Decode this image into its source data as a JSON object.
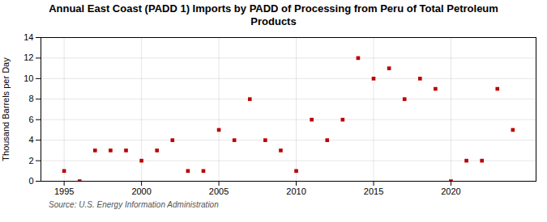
{
  "chart_data": {
    "type": "scatter",
    "title": "Annual East Coast (PADD 1) Imports by PADD of Processing from Peru of Total Petroleum\nProducts",
    "ylabel": "Thousand Barrels per Day",
    "annotation": "Source: U.S. Energy Information Administration",
    "x": [
      1995,
      1996,
      1997,
      1998,
      1999,
      2000,
      2001,
      2002,
      2003,
      2004,
      2005,
      2006,
      2007,
      2008,
      2009,
      2010,
      2011,
      2012,
      2013,
      2014,
      2015,
      2016,
      2017,
      2018,
      2019,
      2020,
      2021,
      2022,
      2023,
      2024
    ],
    "values": [
      1,
      0,
      3,
      3,
      3,
      2,
      3,
      4,
      1,
      1,
      5,
      4,
      8,
      4,
      3,
      1,
      6,
      4,
      6,
      12,
      10,
      11,
      8,
      10,
      9,
      0,
      2,
      2,
      9,
      5
    ],
    "color": "#bb0000",
    "marker": "square",
    "xlim": [
      1993.5,
      2025.5
    ],
    "xticks": [
      1995,
      2000,
      2005,
      2010,
      2015,
      2020
    ],
    "ylim": [
      0,
      14
    ],
    "yticks": [
      0,
      2,
      4,
      6,
      8,
      10,
      12,
      14
    ],
    "grid": true
  }
}
